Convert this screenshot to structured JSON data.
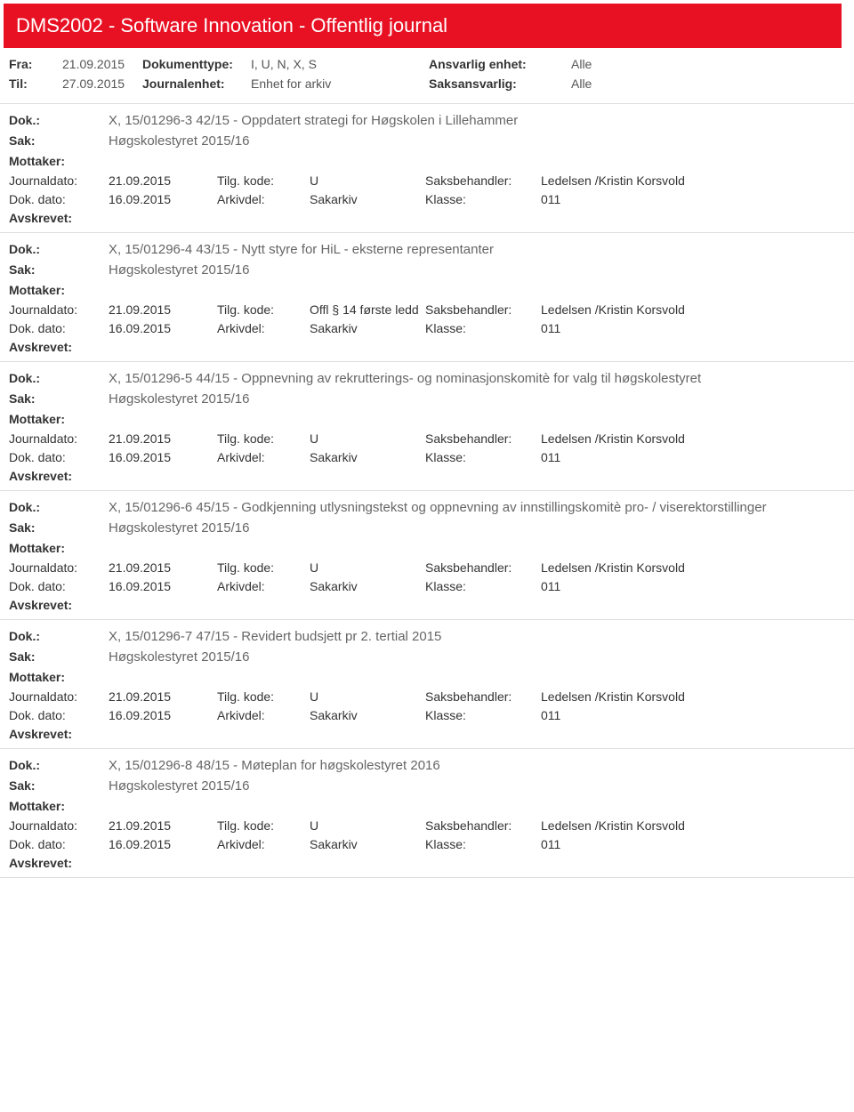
{
  "header": {
    "title": "DMS2002 - Software Innovation - Offentlig journal"
  },
  "filters": {
    "fra_label": "Fra:",
    "fra_value": "21.09.2015",
    "doktype_label": "Dokumenttype:",
    "doktype_value": "I, U, N, X, S",
    "ansvarlig_label": "Ansvarlig enhet:",
    "ansvarlig_value": "Alle",
    "til_label": "Til:",
    "til_value": "27.09.2015",
    "journalenhet_label": "Journalenhet:",
    "journalenhet_value": "Enhet for arkiv",
    "saksansvarlig_label": "Saksansvarlig:",
    "saksansvarlig_value": "Alle"
  },
  "labels": {
    "dok": "Dok.:",
    "sak": "Sak:",
    "mottaker": "Mottaker:",
    "journaldato": "Journaldato:",
    "tilgkode": "Tilg. kode:",
    "saksbehandler": "Saksbehandler:",
    "dokdato": "Dok. dato:",
    "arkivdel": "Arkivdel:",
    "klasse": "Klasse:",
    "avskrevet": "Avskrevet:"
  },
  "entries": [
    {
      "dok": "X, 15/01296-3 42/15 - Oppdatert strategi for Høgskolen i Lillehammer",
      "sak": "Høgskolestyret 2015/16",
      "journaldato": "21.09.2015",
      "tilgkode": "U",
      "saksbehandler": "Ledelsen /Kristin Korsvold",
      "dokdato": "16.09.2015",
      "arkivdel": "Sakarkiv",
      "klasse": "011"
    },
    {
      "dok": "X, 15/01296-4 43/15 - Nytt styre for HiL - eksterne representanter",
      "sak": "Høgskolestyret 2015/16",
      "journaldato": "21.09.2015",
      "tilgkode": "Offl § 14 første ledd",
      "saksbehandler": "Ledelsen /Kristin Korsvold",
      "dokdato": "16.09.2015",
      "arkivdel": "Sakarkiv",
      "klasse": "011"
    },
    {
      "dok": "X, 15/01296-5 44/15 - Oppnevning av rekrutterings- og nominasjonskomitè for valg til høgskolestyret",
      "sak": "Høgskolestyret 2015/16",
      "journaldato": "21.09.2015",
      "tilgkode": "U",
      "saksbehandler": "Ledelsen /Kristin Korsvold",
      "dokdato": "16.09.2015",
      "arkivdel": "Sakarkiv",
      "klasse": "011"
    },
    {
      "dok": "X, 15/01296-6 45/15 - Godkjenning utlysningstekst og oppnevning av innstillingskomitè pro- / viserektorstillinger",
      "sak": "Høgskolestyret 2015/16",
      "journaldato": "21.09.2015",
      "tilgkode": "U",
      "saksbehandler": "Ledelsen /Kristin Korsvold",
      "dokdato": "16.09.2015",
      "arkivdel": "Sakarkiv",
      "klasse": "011"
    },
    {
      "dok": "X, 15/01296-7 47/15 - Revidert budsjett pr 2. tertial 2015",
      "sak": "Høgskolestyret 2015/16",
      "journaldato": "21.09.2015",
      "tilgkode": "U",
      "saksbehandler": "Ledelsen /Kristin Korsvold",
      "dokdato": "16.09.2015",
      "arkivdel": "Sakarkiv",
      "klasse": "011"
    },
    {
      "dok": "X, 15/01296-8 48/15 - Møteplan for høgskolestyret 2016",
      "sak": "Høgskolestyret 2015/16",
      "journaldato": "21.09.2015",
      "tilgkode": "U",
      "saksbehandler": "Ledelsen /Kristin Korsvold",
      "dokdato": "16.09.2015",
      "arkivdel": "Sakarkiv",
      "klasse": "011"
    }
  ]
}
